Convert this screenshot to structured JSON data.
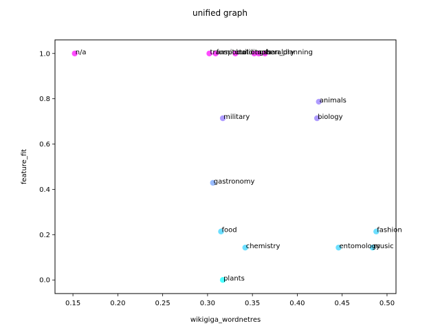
{
  "chart_data": {
    "type": "scatter",
    "title": "unified graph",
    "xlabel": "wikigiga_wordnetres",
    "ylabel": "feature_fit",
    "xlim": [
      0.13,
      0.51
    ],
    "ylim": [
      -0.06,
      1.06
    ],
    "xticks": [
      "0.15",
      "0.20",
      "0.25",
      "0.30",
      "0.35",
      "0.40",
      "0.45",
      "0.50"
    ],
    "yticks": [
      "0.0",
      "0.2",
      "0.4",
      "0.6",
      "0.8",
      "1.0"
    ],
    "grid": false,
    "legend": "none",
    "colormap": "cool",
    "points": [
      {
        "label": "n/a",
        "x": 0.152,
        "y": 1.0,
        "color": "#ff00ff"
      },
      {
        "label": "transportation",
        "x": 0.302,
        "y": 1.0,
        "color": "#ff00ff"
      },
      {
        "label": "furniture",
        "x": 0.309,
        "y": 1.0,
        "color": "#ff00ff"
      },
      {
        "label": "buildings",
        "x": 0.331,
        "y": 1.0,
        "color": "#ff00ff"
      },
      {
        "label": "tools",
        "x": 0.352,
        "y": 1.0,
        "color": "#ff00ff"
      },
      {
        "label": "urban_planning",
        "x": 0.357,
        "y": 1.0,
        "color": "#ff00ff"
      },
      {
        "label": "heraldry",
        "x": 0.364,
        "y": 1.0,
        "color": "#ff00ff"
      },
      {
        "label": "animals",
        "x": 0.424,
        "y": 0.787,
        "color": "#8d72ff"
      },
      {
        "label": "military",
        "x": 0.317,
        "y": 0.714,
        "color": "#8d72ff"
      },
      {
        "label": "biology",
        "x": 0.422,
        "y": 0.714,
        "color": "#8d72ff"
      },
      {
        "label": "gastronomy",
        "x": 0.306,
        "y": 0.429,
        "color": "#6ea0ff"
      },
      {
        "label": "food",
        "x": 0.315,
        "y": 0.214,
        "color": "#2ed1ff"
      },
      {
        "label": "fashion",
        "x": 0.488,
        "y": 0.214,
        "color": "#2ed1ff"
      },
      {
        "label": "chemistry",
        "x": 0.342,
        "y": 0.143,
        "color": "#2ed1ff"
      },
      {
        "label": "entomology",
        "x": 0.446,
        "y": 0.143,
        "color": "#2ed1ff"
      },
      {
        "label": "music",
        "x": 0.484,
        "y": 0.143,
        "color": "#2ed1ff"
      },
      {
        "label": "plants",
        "x": 0.317,
        "y": 0.0,
        "color": "#00ffff"
      }
    ]
  }
}
